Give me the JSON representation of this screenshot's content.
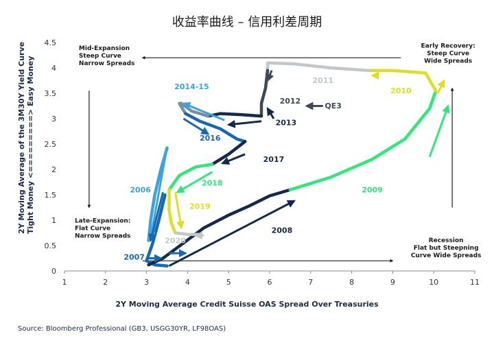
{
  "title": "收益率曲线 – 信用利差周期",
  "source": "Source: Bloomberg Professional (GB3, USGG30YR, LF98OAS)",
  "chart_data": {
    "type": "line",
    "xlabel": "2Y Moving Average Credit Suisse OAS Spread Over Treasuries",
    "ylabel": [
      "2Y Moving Average of the 3M30Y Yield Curve",
      "Tight Money <=========> Easy Money"
    ],
    "xlim": [
      1,
      11
    ],
    "ylim": [
      0,
      4.5
    ],
    "x_ticks": [
      "1",
      "2",
      "3",
      "4",
      "5",
      "6",
      "7",
      "8",
      "9",
      "10",
      "11"
    ],
    "y_ticks": [
      "0",
      "0.5",
      "1",
      "1.5",
      "2",
      "2.5",
      "3",
      "3.5",
      "4",
      "4.5"
    ],
    "grid": false,
    "series": [
      {
        "name": "2006",
        "color": "#3aa3e0",
        "points": [
          [
            3.5,
            2.42
          ],
          [
            3.35,
            2.0
          ],
          [
            3.2,
            1.5
          ],
          [
            3.1,
            1.0
          ],
          [
            3.05,
            0.6
          ]
        ]
      },
      {
        "name": "2007",
        "color": "#1668b0",
        "points": [
          [
            3.45,
            1.5
          ],
          [
            3.3,
            1.0
          ],
          [
            3.15,
            0.55
          ],
          [
            3.0,
            0.2
          ],
          [
            3.2,
            0.12
          ],
          [
            3.5,
            0.1
          ]
        ]
      },
      {
        "name": "2008",
        "color": "#152a4a",
        "points": [
          [
            3.05,
            0.12
          ],
          [
            3.4,
            0.25
          ],
          [
            3.9,
            0.55
          ],
          [
            4.4,
            0.85
          ],
          [
            5.0,
            1.1
          ],
          [
            5.5,
            1.28
          ],
          [
            6.0,
            1.48
          ],
          [
            6.5,
            1.6
          ]
        ]
      },
      {
        "name": "2009",
        "color": "#2ee87a",
        "points": [
          [
            6.5,
            1.6
          ],
          [
            7.5,
            1.85
          ],
          [
            8.5,
            2.2
          ],
          [
            9.3,
            2.6
          ],
          [
            9.9,
            3.2
          ],
          [
            10.05,
            3.55
          ]
        ]
      },
      {
        "name": "2010",
        "color": "#d9e025",
        "points": [
          [
            10.05,
            3.55
          ],
          [
            9.8,
            3.9
          ],
          [
            9.0,
            3.95
          ],
          [
            8.4,
            3.95
          ]
        ]
      },
      {
        "name": "2011",
        "color": "#c3c7cb",
        "points": [
          [
            8.4,
            3.95
          ],
          [
            7.5,
            4.0
          ],
          [
            6.6,
            4.08
          ],
          [
            5.95,
            4.1
          ],
          [
            5.95,
            3.95
          ]
        ]
      },
      {
        "name": "2012",
        "color": "#3d4a56",
        "points": [
          [
            5.95,
            3.95
          ],
          [
            5.9,
            3.6
          ],
          [
            5.8,
            3.3
          ],
          [
            5.8,
            3.05
          ]
        ]
      },
      {
        "name": "2013",
        "color": "#152a4a",
        "points": [
          [
            5.8,
            3.05
          ],
          [
            5.3,
            3.08
          ],
          [
            4.8,
            3.1
          ],
          [
            4.5,
            3.05
          ]
        ]
      },
      {
        "name": "2014-15",
        "color": "#7c8fa0",
        "points": [
          [
            4.5,
            3.05
          ],
          [
            4.1,
            3.15
          ],
          [
            3.85,
            3.3
          ],
          [
            3.8,
            3.3
          ],
          [
            3.95,
            3.1
          ]
        ]
      },
      {
        "name": "2016",
        "color": "#1668b0",
        "points": [
          [
            3.95,
            3.1
          ],
          [
            4.3,
            2.95
          ],
          [
            4.8,
            2.8
          ],
          [
            5.2,
            2.6
          ],
          [
            5.4,
            2.55
          ]
        ]
      },
      {
        "name": "2017",
        "color": "#152a4a",
        "points": [
          [
            5.4,
            2.55
          ],
          [
            5.0,
            2.3
          ],
          [
            4.6,
            2.1
          ]
        ]
      },
      {
        "name": "2018",
        "color": "#2ee87a",
        "points": [
          [
            4.6,
            2.1
          ],
          [
            4.2,
            2.05
          ],
          [
            3.8,
            1.88
          ],
          [
            3.55,
            1.6
          ]
        ]
      },
      {
        "name": "2019",
        "color": "#d9e025",
        "points": [
          [
            3.55,
            1.6
          ],
          [
            3.55,
            1.2
          ],
          [
            3.6,
            0.95
          ],
          [
            3.7,
            0.75
          ]
        ]
      },
      {
        "name": "2020",
        "color": "#c3c7cb",
        "points": [
          [
            3.7,
            0.75
          ],
          [
            4.0,
            0.72
          ],
          [
            4.3,
            0.72
          ]
        ]
      }
    ],
    "year_labels": [
      {
        "text": "2006",
        "x": 2.85,
        "y": 1.55,
        "color": "#3aa3e0"
      },
      {
        "text": "2007",
        "x": 2.7,
        "y": 0.22,
        "color": "#1668b0"
      },
      {
        "text": "2008",
        "x": 6.3,
        "y": 0.75,
        "color": "#152a4a"
      },
      {
        "text": "2009",
        "x": 8.5,
        "y": 1.55,
        "color": "#2ee87a"
      },
      {
        "text": "2010",
        "x": 9.2,
        "y": 3.5,
        "color": "#d9e025"
      },
      {
        "text": "2011",
        "x": 7.3,
        "y": 3.7,
        "color": "#c3c7cb"
      },
      {
        "text": "2012",
        "x": 6.5,
        "y": 3.3,
        "color": "#3d4a56"
      },
      {
        "text": "2013",
        "x": 6.4,
        "y": 2.87,
        "color": "#152a4a"
      },
      {
        "text": "2014-15",
        "x": 4.1,
        "y": 3.58,
        "color": "#3aa3e0"
      },
      {
        "text": "2016",
        "x": 4.55,
        "y": 2.57,
        "color": "#1668b0"
      },
      {
        "text": "2017",
        "x": 6.1,
        "y": 2.15,
        "color": "#152a4a"
      },
      {
        "text": "2018",
        "x": 4.6,
        "y": 1.68,
        "color": "#2ee87a"
      },
      {
        "text": "2019",
        "x": 4.3,
        "y": 1.22,
        "color": "#d9e025"
      },
      {
        "text": "2020",
        "x": 3.7,
        "y": 0.55,
        "color": "#c3c7cb"
      },
      {
        "text": "QE3",
        "x": 7.55,
        "y": 3.2,
        "color": "#3d4a56"
      }
    ],
    "arrows": [
      {
        "x1": 3.5,
        "y1": 2.45,
        "x2": 3.1,
        "y2": 0.65,
        "color": "#3aa3e0"
      },
      {
        "x1": 3.4,
        "y1": 1.55,
        "x2": 3.1,
        "y2": 0.6,
        "color": "#1668b0"
      },
      {
        "x1": 3.05,
        "y1": 0.25,
        "x2": 3.35,
        "y2": 0.25,
        "color": "#1668b0"
      },
      {
        "x1": 3.55,
        "y1": 0.1,
        "x2": 6.6,
        "y2": 1.38,
        "color": "#152a4a"
      },
      {
        "x1": 9.9,
        "y1": 2.25,
        "x2": 10.35,
        "y2": 3.25,
        "color": "#2ee87a"
      },
      {
        "x1": 10.1,
        "y1": 3.5,
        "x2": 10.25,
        "y2": 3.75,
        "color": "#d9e025"
      },
      {
        "x1": 8.6,
        "y1": 3.85,
        "x2": 8.5,
        "y2": 3.85,
        "color": "#d9e025"
      },
      {
        "x1": 6.1,
        "y1": 3.0,
        "x2": 5.95,
        "y2": 3.2,
        "color": "#152a4a"
      },
      {
        "x1": 6.05,
        "y1": 3.95,
        "x2": 5.95,
        "y2": 3.75,
        "color": "#3d4a56"
      },
      {
        "x1": 7.3,
        "y1": 3.25,
        "x2": 6.9,
        "y2": 3.25,
        "color": "#3d4a56"
      },
      {
        "x1": 5.8,
        "y1": 2.95,
        "x2": 5.0,
        "y2": 2.88,
        "color": "#152a4a"
      },
      {
        "x1": 4.9,
        "y1": 2.97,
        "x2": 3.9,
        "y2": 3.3,
        "color": "#3aa3e0"
      },
      {
        "x1": 3.9,
        "y1": 3.0,
        "x2": 4.5,
        "y2": 2.7,
        "color": "#1668b0"
      },
      {
        "x1": 5.4,
        "y1": 2.3,
        "x2": 4.85,
        "y2": 2.12,
        "color": "#152a4a"
      },
      {
        "x1": 4.6,
        "y1": 1.95,
        "x2": 3.75,
        "y2": 1.55,
        "color": "#2ee87a"
      },
      {
        "x1": 3.7,
        "y1": 1.55,
        "x2": 3.85,
        "y2": 0.85,
        "color": "#d9e025"
      },
      {
        "x1": 3.55,
        "y1": 0.35,
        "x2": 3.95,
        "y2": 0.35,
        "color": "#1668b0"
      },
      {
        "x1": 4.4,
        "y1": 0.7,
        "x2": 4.2,
        "y2": 0.7,
        "color": "#c3c7cb"
      }
    ],
    "quadrant_arrows": [
      {
        "x1": 9.2,
        "y1": 4.2,
        "x2": 2.9,
        "y2": 4.2
      },
      {
        "x1": 1.6,
        "y1": 3.55,
        "x2": 1.6,
        "y2": 1.25
      },
      {
        "x1": 2.9,
        "y1": 0.2,
        "x2": 9.0,
        "y2": 0.2
      },
      {
        "x1": 10.45,
        "y1": 1.25,
        "x2": 10.45,
        "y2": 3.6
      }
    ],
    "annotations": [
      {
        "lines": [
          "Mid-Expansion",
          "Steep Curve",
          "Narrow Spreads"
        ],
        "x": 1.35,
        "y": 4.35,
        "anchor": "start"
      },
      {
        "lines": [
          "Early Recovery:",
          "Steep Curve",
          "Wide Spreads"
        ],
        "x": 10.35,
        "y": 4.4,
        "anchor": "middle"
      },
      {
        "lines": [
          "Late-Expansion:",
          "Flat Curve",
          "Narrow Spreads"
        ],
        "x": 1.25,
        "y": 0.95,
        "anchor": "start"
      },
      {
        "lines": [
          "Recession",
          "Flat but Steepning",
          "Curve  Wide Spreads"
        ],
        "x": 10.3,
        "y": 0.57,
        "anchor": "middle"
      }
    ]
  }
}
